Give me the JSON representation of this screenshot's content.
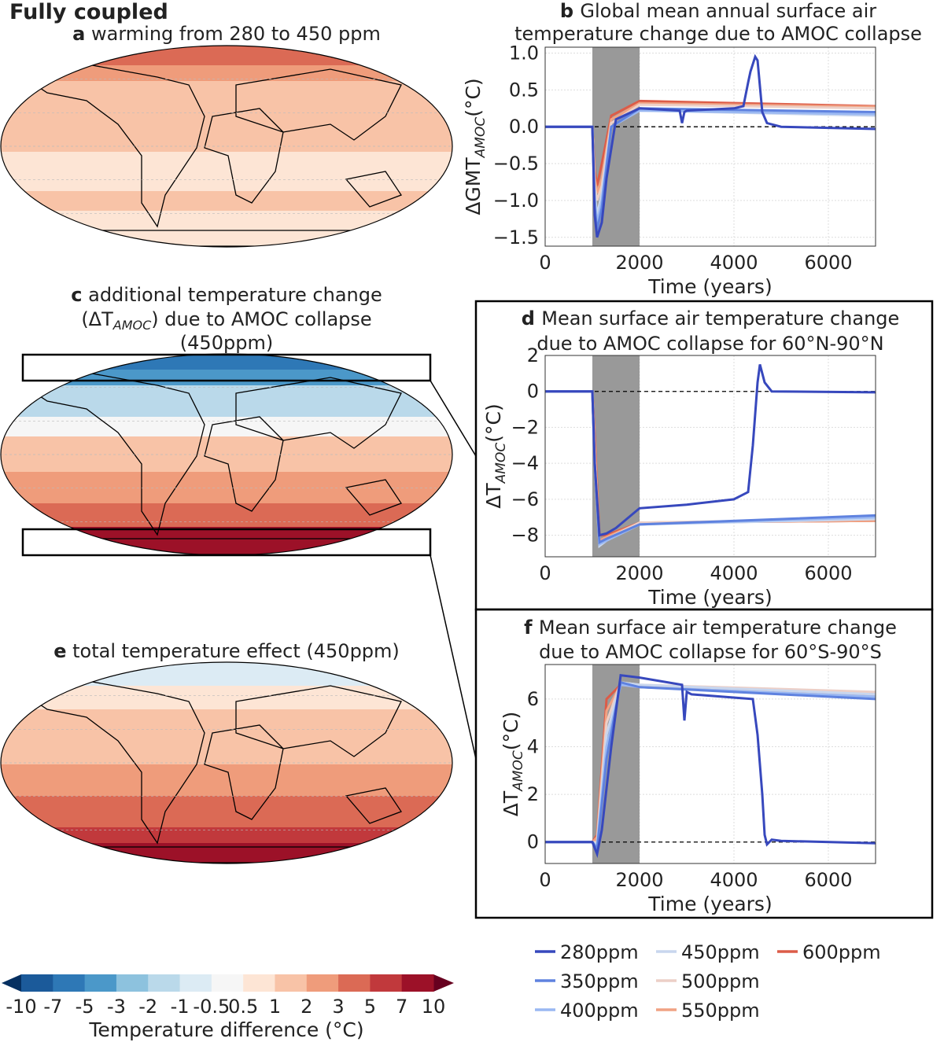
{
  "figure_title": "Fully coupled",
  "panels": {
    "a": {
      "letter": "a",
      "title": "warming from 280 to 450 ppm"
    },
    "c": {
      "letter": "c",
      "title_l1": "additional temperature change",
      "title_l2_pre": "(ΔT",
      "title_l2_sub": "AMOC",
      "title_l2_post": ") due to AMOC collapse",
      "title_l3": "(450ppm)"
    },
    "e": {
      "letter": "e",
      "title": "total temperature effect (450ppm)"
    }
  },
  "colorbar": {
    "ticks": [
      "-10",
      "-7",
      "-5",
      "-3",
      "-2",
      "-1",
      "-0.5",
      "0.5",
      "1",
      "2",
      "3",
      "5",
      "7",
      "10"
    ],
    "label": "Temperature difference (°C)",
    "colors": [
      "#1b5a9a",
      "#2e78b6",
      "#4b98c9",
      "#8dc2de",
      "#bad9ea",
      "#dcebf4",
      "#f6f6f6",
      "#fde5d5",
      "#f8c3a7",
      "#ef9c7b",
      "#db6a55",
      "#c1393c",
      "#9c1128"
    ],
    "extend_low": "#053061",
    "extend_high": "#67001f"
  },
  "legend": [
    {
      "label": "280ppm",
      "color": "#3748bd"
    },
    {
      "label": "350ppm",
      "color": "#5f82df"
    },
    {
      "label": "400ppm",
      "color": "#9ab8f2"
    },
    {
      "label": "450ppm",
      "color": "#c8d6ee"
    },
    {
      "label": "500ppm",
      "color": "#eccfc7"
    },
    {
      "label": "550ppm",
      "color": "#f0a283"
    },
    {
      "label": "600ppm",
      "color": "#dc5c48"
    }
  ],
  "chart_data": [
    {
      "id": "b",
      "type": "line",
      "letter": "b",
      "title_l1": "Global mean annual surface air",
      "title_l2": "temperature change due to AMOC collapse",
      "xlabel": "Time (years)",
      "ylabel_pre": "ΔGMT",
      "ylabel_sub": "AMOC",
      "ylabel_post": "(°C)",
      "xlim": [
        0,
        7000
      ],
      "ylim": [
        -1.62,
        1.08
      ],
      "xticks": [
        0,
        2000,
        4000,
        6000
      ],
      "yticks": [
        1.0,
        0.5,
        0.0,
        -0.5,
        -1.0,
        -1.5
      ],
      "ytick_labels": [
        "1.0",
        "0.5",
        "0.0",
        "−0.5",
        "−1.0",
        "−1.5"
      ],
      "shaded_interval": [
        1000,
        2000
      ],
      "grid": true,
      "zero_line": true,
      "series": [
        {
          "name": "280ppm",
          "x": [
            0,
            1000,
            1050,
            1100,
            1200,
            1300,
            1500,
            2000,
            2850,
            2900,
            2950,
            3000,
            4000,
            4200,
            4300,
            4350,
            4450,
            4500,
            4600,
            4700,
            5000,
            7000
          ],
          "y": [
            0,
            0,
            -1.2,
            -1.5,
            -1.3,
            -0.7,
            0.1,
            0.25,
            0.22,
            0.05,
            0.2,
            0.22,
            0.25,
            0.28,
            0.6,
            0.75,
            0.95,
            0.9,
            0.2,
            0.05,
            0,
            -0.03
          ]
        },
        {
          "name": "350ppm",
          "x": [
            0,
            1000,
            1050,
            1100,
            1200,
            1400,
            2000,
            7000
          ],
          "y": [
            0,
            0,
            -1.1,
            -1.4,
            -1.1,
            0,
            0.25,
            0.2
          ]
        },
        {
          "name": "400ppm",
          "x": [
            0,
            1000,
            1050,
            1100,
            1200,
            1400,
            2000,
            7000
          ],
          "y": [
            0,
            0,
            -1.0,
            -1.3,
            -1.0,
            0,
            0.22,
            0.17
          ]
        },
        {
          "name": "450ppm",
          "x": [
            0,
            1000,
            1050,
            1100,
            1200,
            1400,
            2000,
            7000
          ],
          "y": [
            0,
            0,
            -0.9,
            -1.2,
            -0.9,
            0,
            0.22,
            0.15
          ]
        },
        {
          "name": "500ppm",
          "x": [
            0,
            1000,
            1050,
            1100,
            1200,
            1400,
            2000,
            7000
          ],
          "y": [
            0,
            0,
            -0.8,
            -1.0,
            -0.8,
            0.05,
            0.3,
            0.25
          ]
        },
        {
          "name": "550ppm",
          "x": [
            0,
            1000,
            1050,
            1100,
            1200,
            1400,
            2000,
            7000
          ],
          "y": [
            0,
            0,
            -0.7,
            -0.9,
            -0.7,
            0.1,
            0.32,
            0.27
          ]
        },
        {
          "name": "600ppm",
          "x": [
            0,
            1000,
            1050,
            1100,
            1200,
            1400,
            2000,
            7000
          ],
          "y": [
            0,
            0,
            -0.6,
            -0.8,
            -0.5,
            0.15,
            0.35,
            0.28
          ]
        }
      ]
    },
    {
      "id": "d",
      "type": "line",
      "letter": "d",
      "title_l1": "Mean surface air temperature change",
      "title_l2": "due to AMOC collapse for 60°N-90°N",
      "xlabel": "Time (years)",
      "ylabel_pre": "ΔT",
      "ylabel_sub": "AMOC",
      "ylabel_post": "(°C)",
      "xlim": [
        0,
        7000
      ],
      "ylim": [
        -9.2,
        2
      ],
      "xticks": [
        0,
        2000,
        4000,
        6000
      ],
      "yticks": [
        2,
        0,
        -2,
        -4,
        -6,
        -8
      ],
      "ytick_labels": [
        "2",
        "0",
        "−2",
        "−4",
        "−6",
        "−8"
      ],
      "shaded_interval": [
        1000,
        2000
      ],
      "grid": true,
      "zero_line": true,
      "series": [
        {
          "name": "280ppm",
          "x": [
            0,
            1000,
            1050,
            1150,
            1300,
            1500,
            2000,
            3000,
            4000,
            4300,
            4400,
            4500,
            4550,
            4650,
            4800,
            7000
          ],
          "y": [
            0,
            0,
            -4,
            -8,
            -7.9,
            -7.6,
            -6.5,
            -6.3,
            -6,
            -5.6,
            -3,
            0.5,
            1.5,
            0.5,
            0,
            -0.05
          ]
        },
        {
          "name": "350ppm",
          "x": [
            0,
            1000,
            1050,
            1150,
            1300,
            2000,
            7000
          ],
          "y": [
            0,
            0,
            -4,
            -8.4,
            -8.2,
            -7.4,
            -6.9
          ]
        },
        {
          "name": "400ppm",
          "x": [
            0,
            1000,
            1050,
            1150,
            1300,
            2000,
            7000
          ],
          "y": [
            0,
            0,
            -4,
            -8.5,
            -8.3,
            -7.4,
            -7.0
          ]
        },
        {
          "name": "450ppm",
          "x": [
            0,
            1000,
            1050,
            1150,
            1300,
            2000,
            7000
          ],
          "y": [
            0,
            0,
            -4,
            -8.6,
            -8.3,
            -7.4,
            -7.1
          ]
        },
        {
          "name": "500ppm",
          "x": [
            0,
            1000,
            1050,
            1150,
            1300,
            2000,
            7000
          ],
          "y": [
            0,
            0,
            -3.5,
            -8.5,
            -8.2,
            -7.3,
            -7.1
          ]
        },
        {
          "name": "550ppm",
          "x": [
            0,
            1000,
            1050,
            1150,
            1300,
            2000,
            7000
          ],
          "y": [
            0,
            0,
            -3,
            -8.3,
            -8.1,
            -7.3,
            -7.2
          ]
        },
        {
          "name": "600ppm",
          "x": [
            0,
            1000,
            1050,
            1150,
            1300,
            2000,
            7000
          ],
          "y": [
            0,
            0,
            -2.5,
            -8.0,
            -8.0,
            -7.3,
            -7.2
          ]
        }
      ]
    },
    {
      "id": "f",
      "type": "line",
      "letter": "f",
      "title_l1": "Mean surface air temperature change",
      "title_l2": "due to AMOC collapse for 60°S-90°S",
      "xlabel": "Time (years)",
      "ylabel_pre": "ΔT",
      "ylabel_sub": "AMOC",
      "ylabel_post": "(°C)",
      "xlim": [
        0,
        7000
      ],
      "ylim": [
        -0.9,
        7.45
      ],
      "xticks": [
        0,
        2000,
        4000,
        6000
      ],
      "yticks": [
        6,
        4,
        2,
        0
      ],
      "ytick_labels": [
        "6",
        "4",
        "2",
        "0"
      ],
      "shaded_interval": [
        1000,
        2000
      ],
      "grid": true,
      "zero_line": true,
      "series": [
        {
          "name": "280ppm",
          "x": [
            0,
            1000,
            1100,
            1200,
            1400,
            1600,
            2000,
            2900,
            2950,
            3000,
            3100,
            4400,
            4500,
            4600,
            4650,
            4700,
            4800,
            5000,
            7000
          ],
          "y": [
            0,
            0,
            -0.5,
            0.5,
            4,
            7,
            6.9,
            6.6,
            5.1,
            6.3,
            6.2,
            6,
            4.5,
            2,
            0.3,
            -0.1,
            0.1,
            0.05,
            -0.05
          ]
        },
        {
          "name": "350ppm",
          "x": [
            0,
            1000,
            1100,
            1300,
            1600,
            2000,
            7000
          ],
          "y": [
            0,
            0,
            -0.3,
            3.5,
            6.7,
            6.5,
            6.0
          ]
        },
        {
          "name": "400ppm",
          "x": [
            0,
            1000,
            1100,
            1300,
            1600,
            2000,
            7000
          ],
          "y": [
            0,
            0,
            -0.2,
            4,
            6.6,
            6.5,
            6.1
          ]
        },
        {
          "name": "450ppm",
          "x": [
            0,
            1000,
            1100,
            1300,
            1600,
            2000,
            7000
          ],
          "y": [
            0,
            0,
            -0.1,
            4.5,
            6.7,
            6.6,
            6.2
          ]
        },
        {
          "name": "500ppm",
          "x": [
            0,
            1000,
            1100,
            1300,
            1600,
            2000,
            7000
          ],
          "y": [
            0,
            0,
            0,
            5,
            6.7,
            6.6,
            6.3
          ]
        },
        {
          "name": "550ppm",
          "x": [
            0,
            1000,
            1100,
            1300,
            1600,
            2000,
            7000
          ],
          "y": [
            0,
            0,
            0.2,
            5.5,
            6.6,
            6.5,
            6.2
          ]
        },
        {
          "name": "600ppm",
          "x": [
            0,
            1000,
            1100,
            1300,
            1600,
            2000,
            7000
          ],
          "y": [
            0,
            0,
            0.3,
            6,
            6.6,
            6.5,
            6.2
          ]
        }
      ]
    }
  ]
}
